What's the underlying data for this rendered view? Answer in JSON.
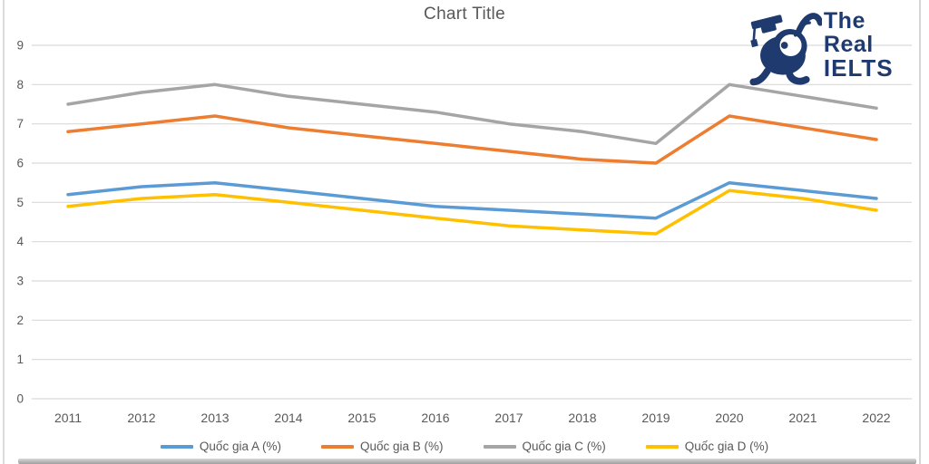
{
  "chart_data": {
    "type": "line",
    "title": "Chart Title",
    "categories": [
      "2011",
      "2012",
      "2013",
      "2014",
      "2015",
      "2016",
      "2017",
      "2018",
      "2019",
      "2020",
      "2021",
      "2022"
    ],
    "series": [
      {
        "name": "Quốc gia A (%)",
        "color": "#5B9BD5",
        "values": [
          5.2,
          5.4,
          5.5,
          5.3,
          5.1,
          4.9,
          4.8,
          4.7,
          4.6,
          5.5,
          5.3,
          5.1
        ]
      },
      {
        "name": "Quốc gia B (%)",
        "color": "#ED7D31",
        "values": [
          6.8,
          7.0,
          7.2,
          6.9,
          6.7,
          6.5,
          6.3,
          6.1,
          6.0,
          7.2,
          6.9,
          6.6
        ]
      },
      {
        "name": "Quốc gia C (%)",
        "color": "#A5A5A5",
        "values": [
          7.5,
          7.8,
          8.0,
          7.7,
          7.5,
          7.3,
          7.0,
          6.8,
          6.5,
          8.0,
          7.7,
          7.4
        ]
      },
      {
        "name": "Quốc gia D (%)",
        "color": "#FFC000",
        "values": [
          4.9,
          5.1,
          5.2,
          5.0,
          4.8,
          4.6,
          4.4,
          4.3,
          4.2,
          5.3,
          5.1,
          4.8
        ]
      }
    ],
    "ylim": [
      0,
      9
    ],
    "ytick_step": 1,
    "xlabel": "",
    "ylabel": "",
    "grid": true,
    "legend_position": "bottom"
  },
  "logo": {
    "line1": "The Real",
    "line2": "IELTS",
    "color": "#1f3a6e"
  },
  "colors": {
    "grid": "#d9d9d9",
    "axis_text": "#595959",
    "title_text": "#595959"
  }
}
